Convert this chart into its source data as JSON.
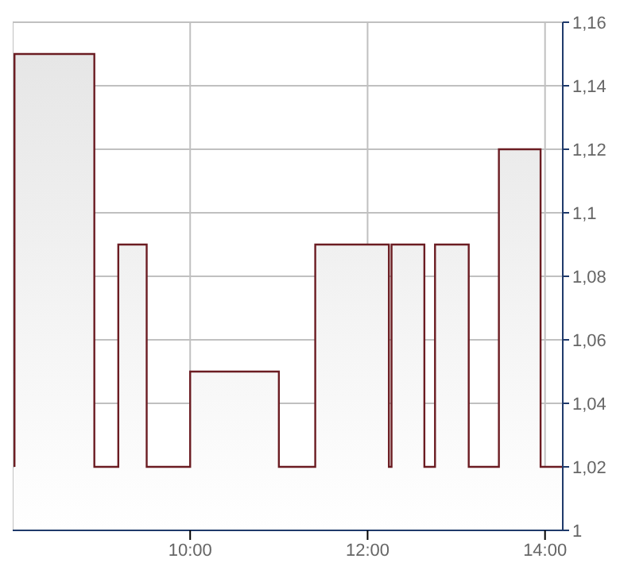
{
  "chart_data": {
    "type": "area",
    "x": [
      8.02,
      8.02,
      8.92,
      8.92,
      9.19,
      9.19,
      9.51,
      9.51,
      10.0,
      10.0,
      11.0,
      11.0,
      11.41,
      11.41,
      12.24,
      12.24,
      12.27,
      12.27,
      12.64,
      12.64,
      12.76,
      12.76,
      13.14,
      13.14,
      13.48,
      13.48,
      13.95,
      13.95,
      14.2
    ],
    "series": [
      {
        "color": "#6b1c22",
        "values": [
          1.02,
          1.15,
          1.15,
          1.02,
          1.02,
          1.09,
          1.09,
          1.02,
          1.02,
          1.05,
          1.05,
          1.02,
          1.02,
          1.09,
          1.09,
          1.02,
          1.02,
          1.09,
          1.09,
          1.02,
          1.02,
          1.09,
          1.09,
          1.02,
          1.02,
          1.12,
          1.12,
          1.02,
          1.02
        ]
      }
    ],
    "xlim": [
      8,
      14.2
    ],
    "xticks": [
      {
        "value": 10,
        "label": "10:00"
      },
      {
        "value": 12,
        "label": "12:00"
      },
      {
        "value": 14,
        "label": "14:00"
      }
    ],
    "ylim": [
      1,
      1.16
    ],
    "yticks": [
      1,
      {
        "value": 1.02,
        "label": "1,02"
      },
      {
        "value": 1.04,
        "label": "1,04"
      },
      {
        "value": 1.06,
        "label": "1,06"
      },
      {
        "value": 1.08,
        "label": "1,08"
      },
      {
        "value": 1.1,
        "label": "1,1"
      },
      {
        "value": 1.12,
        "label": "1,12"
      },
      {
        "value": 1.14,
        "label": "1,14"
      },
      {
        "value": 1.16,
        "label": "1,16"
      }
    ],
    "grid": true
  }
}
